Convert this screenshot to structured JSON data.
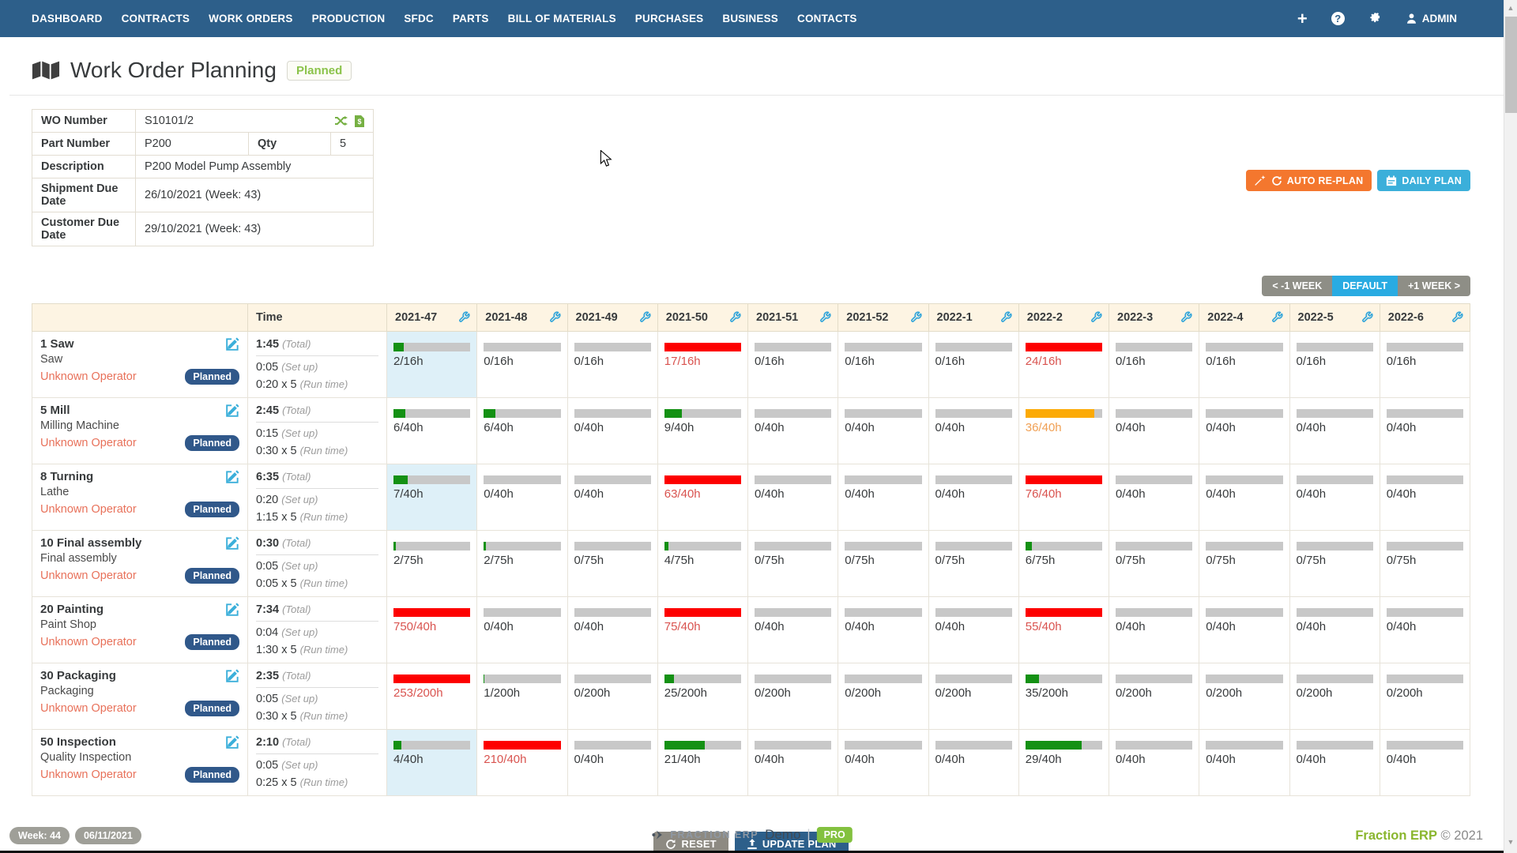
{
  "nav": {
    "items": [
      "DASHBOARD",
      "CONTRACTS",
      "WORK ORDERS",
      "PRODUCTION",
      "SFDC",
      "PARTS",
      "BILL OF MATERIALS",
      "PURCHASES",
      "BUSINESS",
      "CONTACTS"
    ],
    "user_label": "ADMIN"
  },
  "header": {
    "title": "Work Order Planning",
    "status_badge": "Planned"
  },
  "wo_details": {
    "wo_number_label": "WO Number",
    "wo_number": "S10101/2",
    "part_number_label": "Part Number",
    "part_number": "P200",
    "qty_label": "Qty",
    "qty": "5",
    "description_label": "Description",
    "description": "P200 Model Pump Assembly",
    "shipment_label": "Shipment Due Date",
    "shipment": "26/10/2021 (Week: 43)",
    "customer_label": "Customer Due Date",
    "customer": "29/10/2021 (Week: 43)"
  },
  "actions": {
    "auto_replan": "AUTO RE-PLAN",
    "daily_plan": "DAILY PLAN",
    "prev_week": "< -1 WEEK",
    "default": "DEFAULT",
    "next_week": "+1 WEEK >",
    "reset": "RESET",
    "update_plan": "UPDATE PLAN"
  },
  "plan_table": {
    "time_header": "Time",
    "labels": {
      "total": "(Total)",
      "setup": "(Set up)",
      "run": "(Run time)"
    },
    "weeks": [
      "2021-47",
      "2021-48",
      "2021-49",
      "2021-50",
      "2021-51",
      "2021-52",
      "2022-1",
      "2022-2",
      "2022-3",
      "2022-4",
      "2022-5",
      "2022-6"
    ],
    "rows": [
      {
        "operation": "1 Saw",
        "machine": "Saw",
        "operator": "Unknown Operator",
        "status": "Planned",
        "total": "1:45",
        "setup": "0:05",
        "run": "0:20 x 5",
        "cells": [
          {
            "text": "2/16h",
            "pct": 13,
            "state": "ok",
            "hl": true
          },
          {
            "text": "0/16h",
            "pct": 0,
            "state": "empty"
          },
          {
            "text": "0/16h",
            "pct": 0,
            "state": "empty"
          },
          {
            "text": "17/16h",
            "pct": 100,
            "state": "over"
          },
          {
            "text": "0/16h",
            "pct": 0,
            "state": "empty"
          },
          {
            "text": "0/16h",
            "pct": 0,
            "state": "empty"
          },
          {
            "text": "0/16h",
            "pct": 0,
            "state": "empty"
          },
          {
            "text": "24/16h",
            "pct": 100,
            "state": "over"
          },
          {
            "text": "0/16h",
            "pct": 0,
            "state": "empty"
          },
          {
            "text": "0/16h",
            "pct": 0,
            "state": "empty"
          },
          {
            "text": "0/16h",
            "pct": 0,
            "state": "empty"
          },
          {
            "text": "0/16h",
            "pct": 0,
            "state": "empty"
          }
        ]
      },
      {
        "operation": "5 Mill",
        "machine": "Milling Machine",
        "operator": "Unknown Operator",
        "status": "Planned",
        "total": "2:45",
        "setup": "0:15",
        "run": "0:30 x 5",
        "cells": [
          {
            "text": "6/40h",
            "pct": 15,
            "state": "ok"
          },
          {
            "text": "6/40h",
            "pct": 15,
            "state": "ok"
          },
          {
            "text": "0/40h",
            "pct": 0,
            "state": "empty"
          },
          {
            "text": "9/40h",
            "pct": 23,
            "state": "ok"
          },
          {
            "text": "0/40h",
            "pct": 0,
            "state": "empty"
          },
          {
            "text": "0/40h",
            "pct": 0,
            "state": "empty"
          },
          {
            "text": "0/40h",
            "pct": 0,
            "state": "empty"
          },
          {
            "text": "36/40h",
            "pct": 90,
            "state": "warn"
          },
          {
            "text": "0/40h",
            "pct": 0,
            "state": "empty"
          },
          {
            "text": "0/40h",
            "pct": 0,
            "state": "empty"
          },
          {
            "text": "0/40h",
            "pct": 0,
            "state": "empty"
          },
          {
            "text": "0/40h",
            "pct": 0,
            "state": "empty"
          }
        ]
      },
      {
        "operation": "8 Turning",
        "machine": "Lathe",
        "operator": "Unknown Operator",
        "status": "Planned",
        "total": "6:35",
        "setup": "0:20",
        "run": "1:15 x 5",
        "cells": [
          {
            "text": "7/40h",
            "pct": 18,
            "state": "ok",
            "hl": true
          },
          {
            "text": "0/40h",
            "pct": 0,
            "state": "empty"
          },
          {
            "text": "0/40h",
            "pct": 0,
            "state": "empty"
          },
          {
            "text": "63/40h",
            "pct": 100,
            "state": "over"
          },
          {
            "text": "0/40h",
            "pct": 0,
            "state": "empty"
          },
          {
            "text": "0/40h",
            "pct": 0,
            "state": "empty"
          },
          {
            "text": "0/40h",
            "pct": 0,
            "state": "empty"
          },
          {
            "text": "76/40h",
            "pct": 100,
            "state": "over"
          },
          {
            "text": "0/40h",
            "pct": 0,
            "state": "empty"
          },
          {
            "text": "0/40h",
            "pct": 0,
            "state": "empty"
          },
          {
            "text": "0/40h",
            "pct": 0,
            "state": "empty"
          },
          {
            "text": "0/40h",
            "pct": 0,
            "state": "empty"
          }
        ]
      },
      {
        "operation": "10 Final assembly",
        "machine": "Final assembly",
        "operator": "Unknown Operator",
        "status": "Planned",
        "total": "0:30",
        "setup": "0:05",
        "run": "0:05 x 5",
        "cells": [
          {
            "text": "2/75h",
            "pct": 3,
            "state": "ok"
          },
          {
            "text": "2/75h",
            "pct": 3,
            "state": "ok"
          },
          {
            "text": "0/75h",
            "pct": 0,
            "state": "empty"
          },
          {
            "text": "4/75h",
            "pct": 5,
            "state": "ok"
          },
          {
            "text": "0/75h",
            "pct": 0,
            "state": "empty"
          },
          {
            "text": "0/75h",
            "pct": 0,
            "state": "empty"
          },
          {
            "text": "0/75h",
            "pct": 0,
            "state": "empty"
          },
          {
            "text": "6/75h",
            "pct": 8,
            "state": "ok"
          },
          {
            "text": "0/75h",
            "pct": 0,
            "state": "empty"
          },
          {
            "text": "0/75h",
            "pct": 0,
            "state": "empty"
          },
          {
            "text": "0/75h",
            "pct": 0,
            "state": "empty"
          },
          {
            "text": "0/75h",
            "pct": 0,
            "state": "empty"
          }
        ]
      },
      {
        "operation": "20 Painting",
        "machine": "Paint Shop",
        "operator": "Unknown Operator",
        "status": "Planned",
        "total": "7:34",
        "setup": "0:04",
        "run": "1:30 x 5",
        "cells": [
          {
            "text": "750/40h",
            "pct": 100,
            "state": "over"
          },
          {
            "text": "0/40h",
            "pct": 0,
            "state": "empty"
          },
          {
            "text": "0/40h",
            "pct": 0,
            "state": "empty"
          },
          {
            "text": "75/40h",
            "pct": 100,
            "state": "over"
          },
          {
            "text": "0/40h",
            "pct": 0,
            "state": "empty"
          },
          {
            "text": "0/40h",
            "pct": 0,
            "state": "empty"
          },
          {
            "text": "0/40h",
            "pct": 0,
            "state": "empty"
          },
          {
            "text": "55/40h",
            "pct": 100,
            "state": "over"
          },
          {
            "text": "0/40h",
            "pct": 0,
            "state": "empty"
          },
          {
            "text": "0/40h",
            "pct": 0,
            "state": "empty"
          },
          {
            "text": "0/40h",
            "pct": 0,
            "state": "empty"
          },
          {
            "text": "0/40h",
            "pct": 0,
            "state": "empty"
          }
        ]
      },
      {
        "operation": "30 Packaging",
        "machine": "Packaging",
        "operator": "Unknown Operator",
        "status": "Planned",
        "total": "2:35",
        "setup": "0:05",
        "run": "0:30 x 5",
        "cells": [
          {
            "text": "253/200h",
            "pct": 100,
            "state": "over"
          },
          {
            "text": "1/200h",
            "pct": 1,
            "state": "ok"
          },
          {
            "text": "0/200h",
            "pct": 0,
            "state": "empty"
          },
          {
            "text": "25/200h",
            "pct": 13,
            "state": "ok"
          },
          {
            "text": "0/200h",
            "pct": 0,
            "state": "empty"
          },
          {
            "text": "0/200h",
            "pct": 0,
            "state": "empty"
          },
          {
            "text": "0/200h",
            "pct": 0,
            "state": "empty"
          },
          {
            "text": "35/200h",
            "pct": 18,
            "state": "ok"
          },
          {
            "text": "0/200h",
            "pct": 0,
            "state": "empty"
          },
          {
            "text": "0/200h",
            "pct": 0,
            "state": "empty"
          },
          {
            "text": "0/200h",
            "pct": 0,
            "state": "empty"
          },
          {
            "text": "0/200h",
            "pct": 0,
            "state": "empty"
          }
        ]
      },
      {
        "operation": "50 Inspection",
        "machine": "Quality Inspection",
        "operator": "Unknown Operator",
        "status": "Planned",
        "total": "2:10",
        "setup": "0:05",
        "run": "0:25 x 5",
        "cells": [
          {
            "text": "4/40h",
            "pct": 10,
            "state": "ok",
            "hl": true
          },
          {
            "text": "210/40h",
            "pct": 100,
            "state": "over"
          },
          {
            "text": "0/40h",
            "pct": 0,
            "state": "empty"
          },
          {
            "text": "21/40h",
            "pct": 53,
            "state": "ok"
          },
          {
            "text": "0/40h",
            "pct": 0,
            "state": "empty"
          },
          {
            "text": "0/40h",
            "pct": 0,
            "state": "empty"
          },
          {
            "text": "0/40h",
            "pct": 0,
            "state": "empty"
          },
          {
            "text": "29/40h",
            "pct": 73,
            "state": "ok"
          },
          {
            "text": "0/40h",
            "pct": 0,
            "state": "empty"
          },
          {
            "text": "0/40h",
            "pct": 0,
            "state": "empty"
          },
          {
            "text": "0/40h",
            "pct": 0,
            "state": "empty"
          },
          {
            "text": "0/40h",
            "pct": 0,
            "state": "empty"
          }
        ]
      }
    ]
  },
  "footer": {
    "week_badge": "Week: 44",
    "date_badge": "06/11/2021",
    "brand_caps": "FRACTION ERP",
    "environment": "Demo",
    "separator": "|",
    "pro_badge": "PRO",
    "copyright_brand": "Fraction ERP",
    "copyright": "© 2021"
  },
  "colors": {
    "nav_blue": "#2d5f8a",
    "accent_blue": "#3bafda",
    "orange_button": "#f4772e",
    "bar_green": "#149114",
    "bar_red": "#fd0000",
    "bar_amber": "#fcaa05",
    "bar_track_gray": "#c8c8c8",
    "over_text_red": "#d9534f",
    "warn_text_orange": "#f0a054",
    "operator_link": "#e8715a",
    "planned_badge": "#30588a",
    "header_cream": "#fdf4e3",
    "highlight_cell": "#def0f8",
    "footer_green": "#8ab62e",
    "status_badge_green": "#8bc34a"
  }
}
